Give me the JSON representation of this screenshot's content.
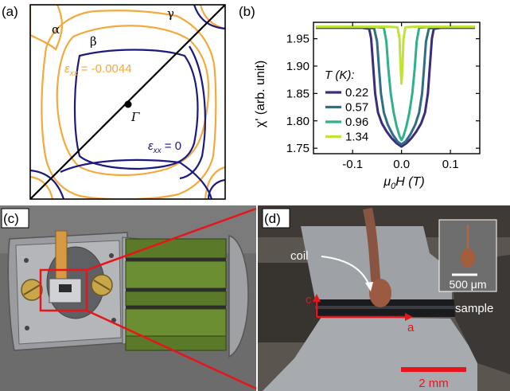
{
  "figure": {
    "panel_labels": [
      "(a)",
      "(b)",
      "(c)",
      "(d)"
    ]
  },
  "panel_a": {
    "band_labels": {
      "alpha": "α",
      "beta": "β",
      "gamma": "γ",
      "gamma_point": "Γ"
    },
    "strained_label": "ε",
    "strained_label_sub": "xx",
    "strained_label_value": " = -0.0044",
    "unstrained_label": "ε",
    "unstrained_label_sub": "xx",
    "unstrained_label_value": " = 0",
    "colors": {
      "strained": "#f4a93c",
      "unstrained": "#1d1a7e"
    }
  },
  "panel_b": {
    "legend_title": "T (K):",
    "ylabel": "χ' (arb. unit)",
    "xlabel_main": "μ",
    "xlabel_sub": "0",
    "xlabel_rest": "H (T)"
  },
  "chart_data": {
    "type": "line",
    "xlim": [
      -0.18,
      0.16
    ],
    "ylim": [
      1.74,
      1.98
    ],
    "xticks": [
      "-0.1",
      "0.0",
      "0.1"
    ],
    "xtick_values": [
      -0.1,
      0.0,
      0.1
    ],
    "yticks": [
      "1.75",
      "1.80",
      "1.85",
      "1.90",
      "1.95"
    ],
    "ytick_values": [
      1.75,
      1.8,
      1.85,
      1.9,
      1.95
    ],
    "series": [
      {
        "name": "0.22",
        "color": "#3b2d7a",
        "x": [
          -0.175,
          -0.12,
          -0.08,
          -0.066,
          -0.062,
          -0.058,
          -0.054,
          -0.048,
          -0.04,
          -0.03,
          -0.02,
          -0.01,
          0.0,
          0.01,
          0.02,
          0.03,
          0.04,
          0.048,
          0.054,
          0.058,
          0.062,
          0.066,
          0.08,
          0.12,
          0.15
        ],
        "y": [
          1.97,
          1.97,
          1.97,
          1.968,
          1.95,
          1.9,
          1.85,
          1.815,
          1.795,
          1.78,
          1.768,
          1.759,
          1.753,
          1.759,
          1.768,
          1.78,
          1.795,
          1.815,
          1.85,
          1.9,
          1.95,
          1.968,
          1.97,
          1.97,
          1.97
        ]
      },
      {
        "name": "0.57",
        "color": "#2f6f86",
        "x": [
          -0.175,
          -0.08,
          -0.056,
          -0.05,
          -0.046,
          -0.042,
          -0.036,
          -0.028,
          -0.018,
          -0.008,
          0.0,
          0.008,
          0.018,
          0.028,
          0.036,
          0.042,
          0.046,
          0.05,
          0.056,
          0.08,
          0.15
        ],
        "y": [
          1.971,
          1.971,
          1.969,
          1.945,
          1.895,
          1.85,
          1.815,
          1.793,
          1.775,
          1.762,
          1.757,
          1.762,
          1.775,
          1.793,
          1.815,
          1.85,
          1.895,
          1.945,
          1.969,
          1.971,
          1.971
        ]
      },
      {
        "name": "0.96",
        "color": "#2fb18c",
        "x": [
          -0.175,
          -0.06,
          -0.036,
          -0.031,
          -0.027,
          -0.022,
          -0.016,
          -0.01,
          -0.004,
          0.0,
          0.004,
          0.01,
          0.016,
          0.022,
          0.027,
          0.031,
          0.036,
          0.06,
          0.15
        ],
        "y": [
          1.972,
          1.972,
          1.97,
          1.945,
          1.895,
          1.85,
          1.815,
          1.79,
          1.772,
          1.765,
          1.772,
          1.79,
          1.815,
          1.85,
          1.895,
          1.945,
          1.97,
          1.972,
          1.972
        ]
      },
      {
        "name": "1.34",
        "color": "#c1e23a",
        "x": [
          -0.175,
          -0.03,
          -0.008,
          -0.004,
          -0.002,
          0.0,
          0.002,
          0.004,
          0.008,
          0.03,
          0.15
        ],
        "y": [
          1.972,
          1.972,
          1.971,
          1.95,
          1.9,
          1.868,
          1.9,
          1.95,
          1.971,
          1.972,
          1.972
        ]
      }
    ]
  },
  "panel_d": {
    "coil_label": "coil",
    "sample_label": "sample",
    "axis_c_label": "c",
    "axis_a_label": "a",
    "inset_scale_label": "500 μm",
    "scale_label": "2 mm"
  }
}
